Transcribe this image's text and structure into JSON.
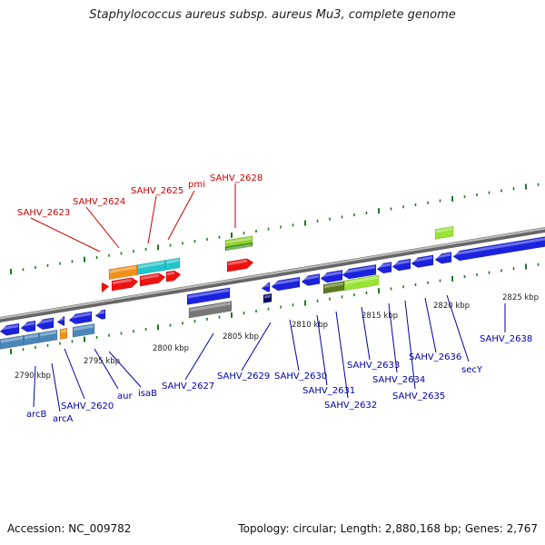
{
  "title": "Staphylococcus aureus subsp. aureus Mu3, complete genome",
  "footer": {
    "accession": "Accession: NC_009782",
    "info": "Topology: circular; Length: 2,880,168 bp; Genes: 2,767"
  },
  "colors": {
    "backbone": "#8a8a8a",
    "tick": "#1f7a1f",
    "forward_label": "#cc0000",
    "reverse_label": "#0000aa",
    "scale_label": "#222222"
  },
  "scale_labels": [
    "2790 kbp",
    "2795 kbp",
    "2800 kbp",
    "2805 kbp",
    "2810 kbp",
    "2815 kbp",
    "2820 kbp",
    "2825 kbp"
  ],
  "forward_gene_labels": [
    "SAHV_2623",
    "SAHV_2624",
    "SAHV_2625",
    "pmi",
    "SAHV_2628"
  ],
  "reverse_gene_labels": [
    "arcB",
    "arcA",
    "SAHV_2620",
    "aur",
    "isaB",
    "SAHV_2627",
    "SAHV_2629",
    "SAHV_2630",
    "SAHV_2631",
    "SAHV_2632",
    "SAHV_2633",
    "SAHV_2634",
    "SAHV_2635",
    "SAHV_2636",
    "secY",
    "SAHV_2638"
  ]
}
